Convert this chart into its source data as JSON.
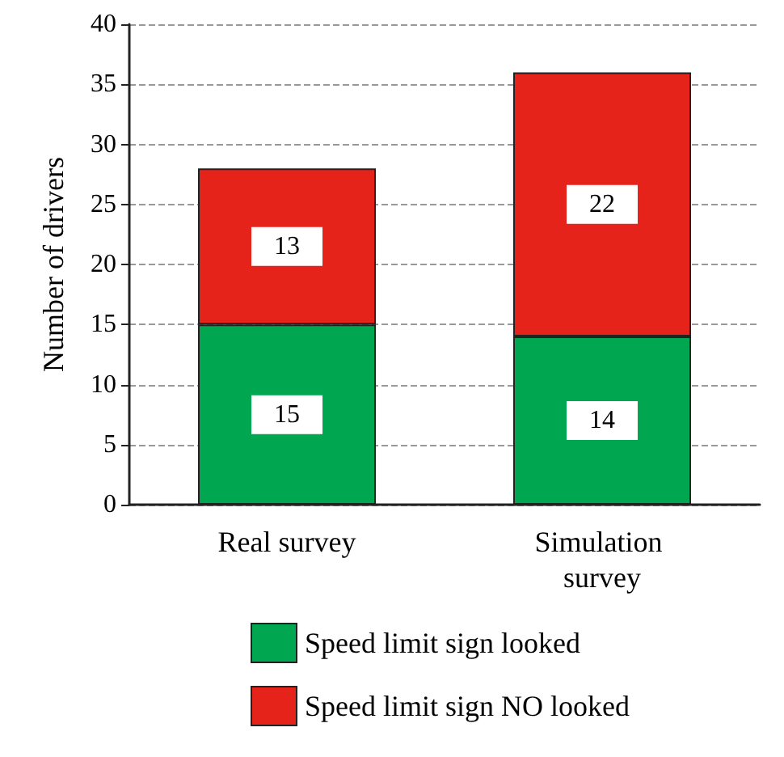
{
  "chart_data": {
    "type": "bar",
    "stacked": true,
    "ylabel": "Number of drivers",
    "categories": [
      "Real survey",
      "Simulation survey"
    ],
    "series": [
      {
        "name": "Speed limit sign looked",
        "color": "#00a650",
        "values": [
          15,
          14
        ]
      },
      {
        "name": "Speed limit sign NO looked",
        "color": "#e5231b",
        "values": [
          13,
          22
        ]
      }
    ],
    "ylim": [
      0,
      40
    ],
    "yticks": [
      0,
      5,
      10,
      15,
      20,
      25,
      30,
      35,
      40
    ],
    "grid": "y",
    "legend": "bottom",
    "data_labels": true
  }
}
